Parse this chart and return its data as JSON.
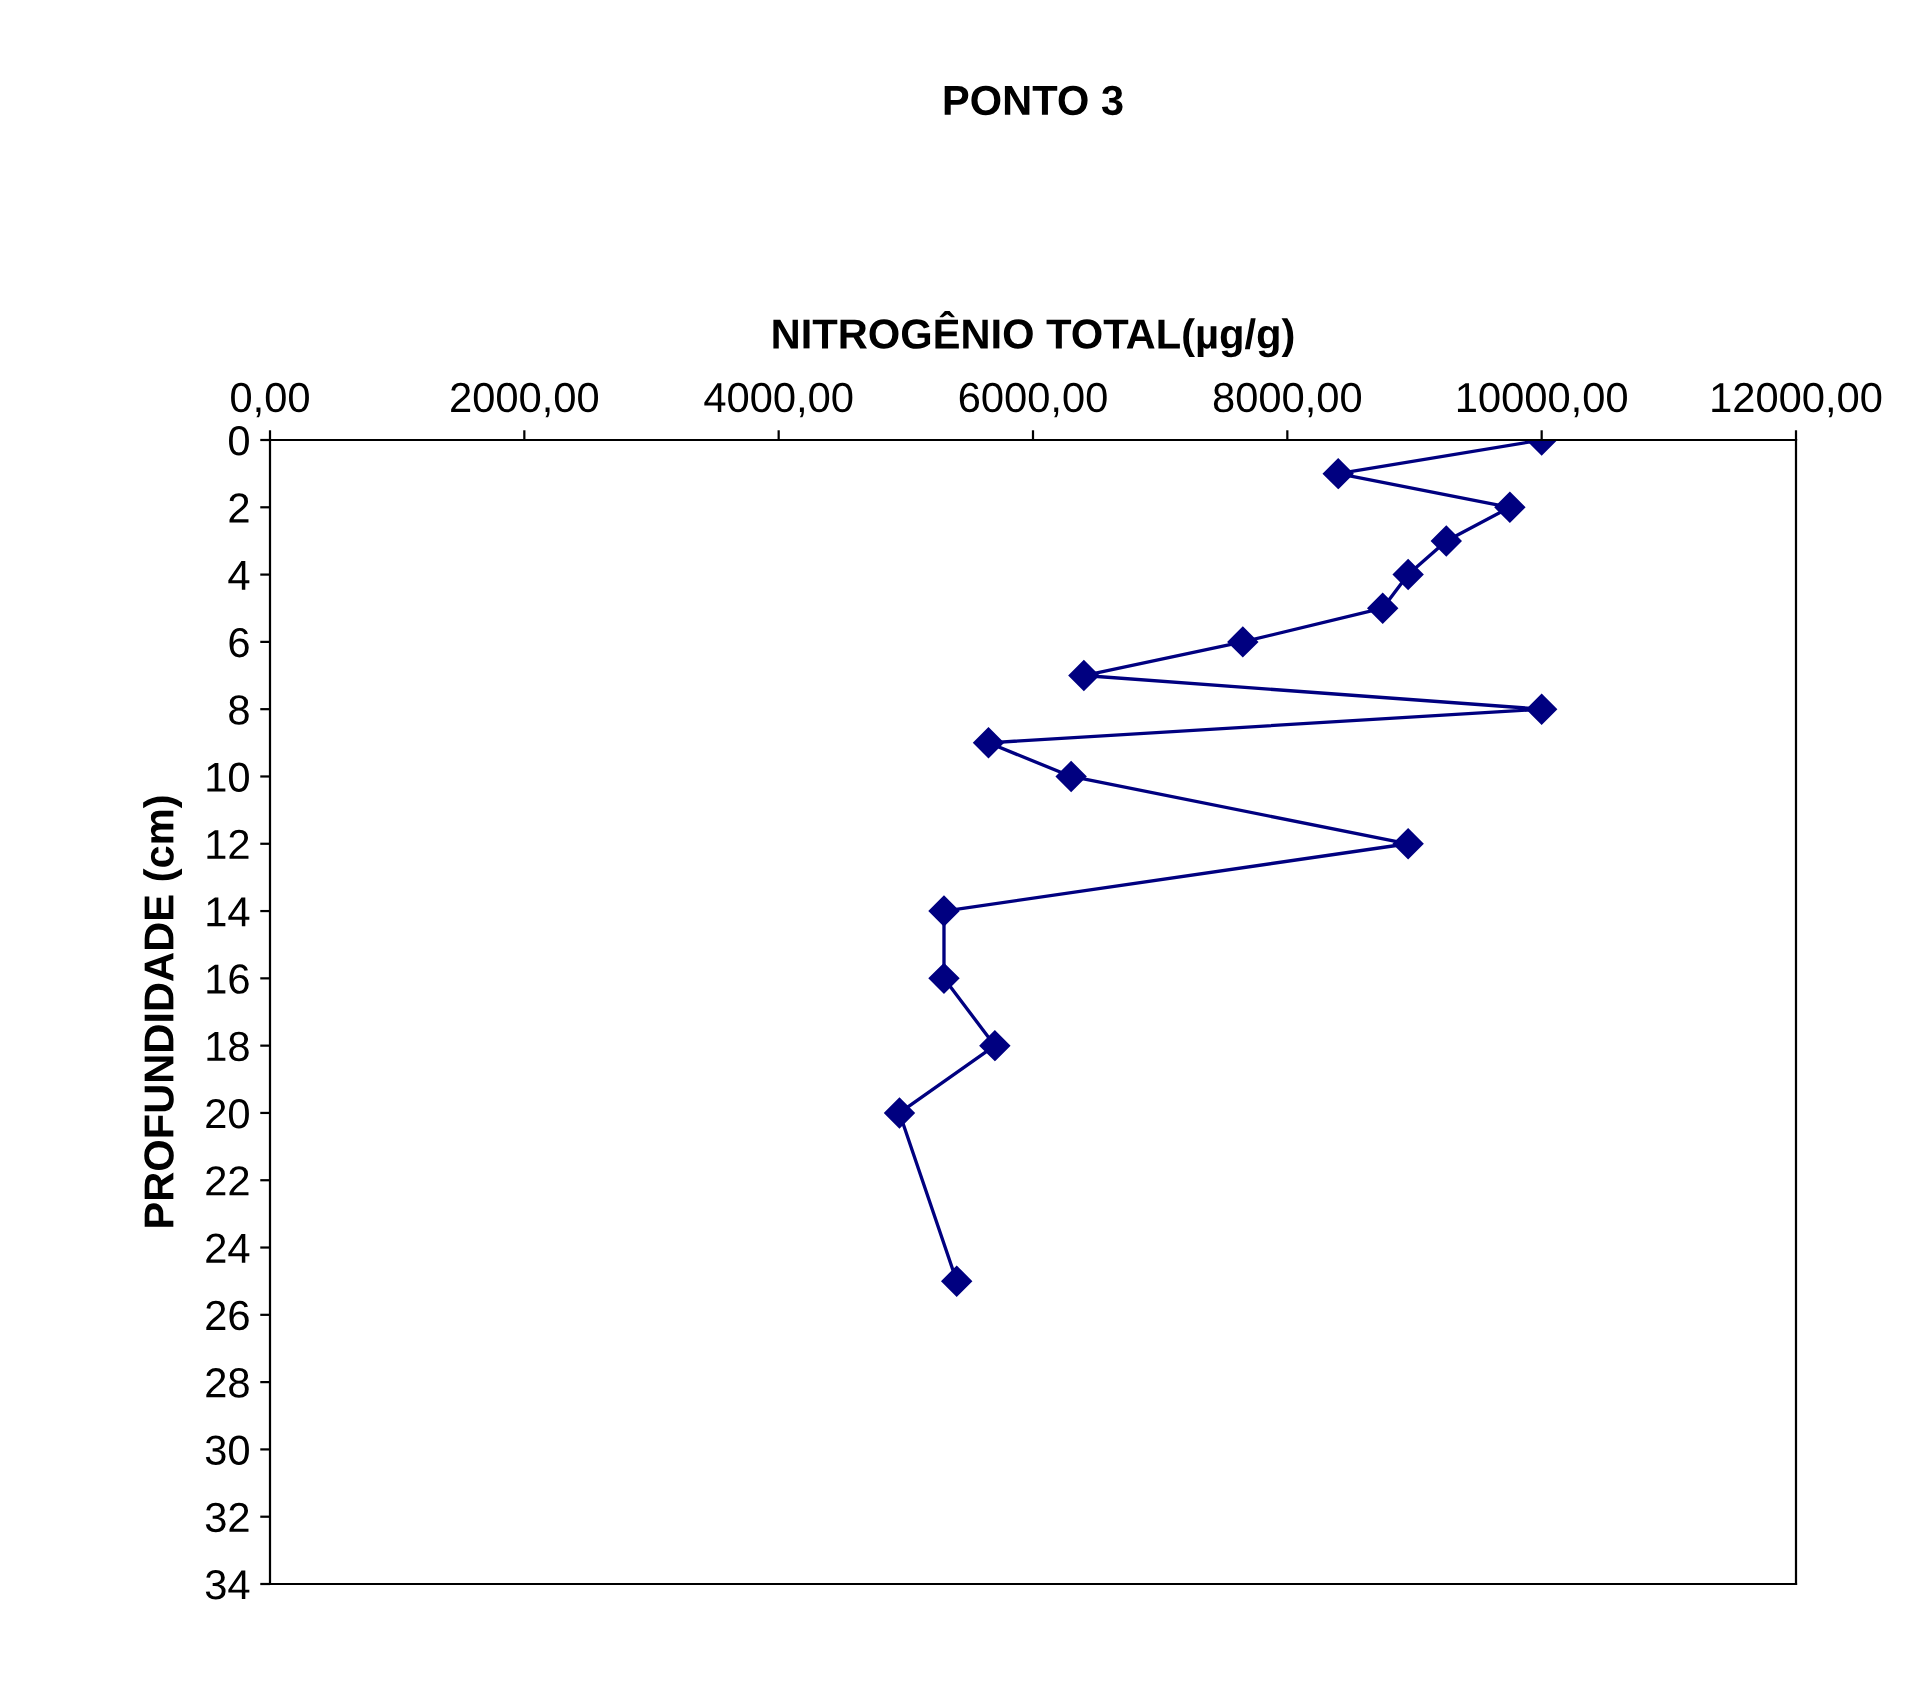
{
  "chart_data": {
    "type": "line",
    "title": "PONTO 3",
    "xlabel": "NITROGÊNIO TOTAL(µg/g)",
    "ylabel": "PROFUNDIDADE (cm)",
    "series": [
      {
        "color": "#000080",
        "x": [
          10000,
          8400,
          9750,
          9250,
          8950,
          8750,
          7650,
          6400,
          10000,
          5650,
          6300,
          8950,
          5300,
          5300,
          5700,
          4950,
          5400
        ],
        "values": [
          0,
          1,
          2,
          3,
          4,
          5,
          6,
          7,
          8,
          9,
          10,
          12,
          14,
          16,
          18,
          20,
          25
        ]
      }
    ],
    "xlim": [
      0,
      12000
    ],
    "xticks": [
      {
        "value": 0,
        "label": "0,00"
      },
      {
        "value": 2000,
        "label": "2000,00"
      },
      {
        "value": 4000,
        "label": "4000,00"
      },
      {
        "value": 6000,
        "label": "6000,00"
      },
      {
        "value": 8000,
        "label": "8000,00"
      },
      {
        "value": 10000,
        "label": "10000,00"
      },
      {
        "value": 12000,
        "label": "12000,00"
      }
    ],
    "ylim": [
      34,
      0
    ],
    "yticks": [
      0,
      2,
      4,
      6,
      8,
      10,
      12,
      14,
      16,
      18,
      20,
      22,
      24,
      26,
      28,
      30,
      32,
      34
    ],
    "grid": false,
    "legend": false,
    "marker": "diamond",
    "line_style": "solid"
  }
}
